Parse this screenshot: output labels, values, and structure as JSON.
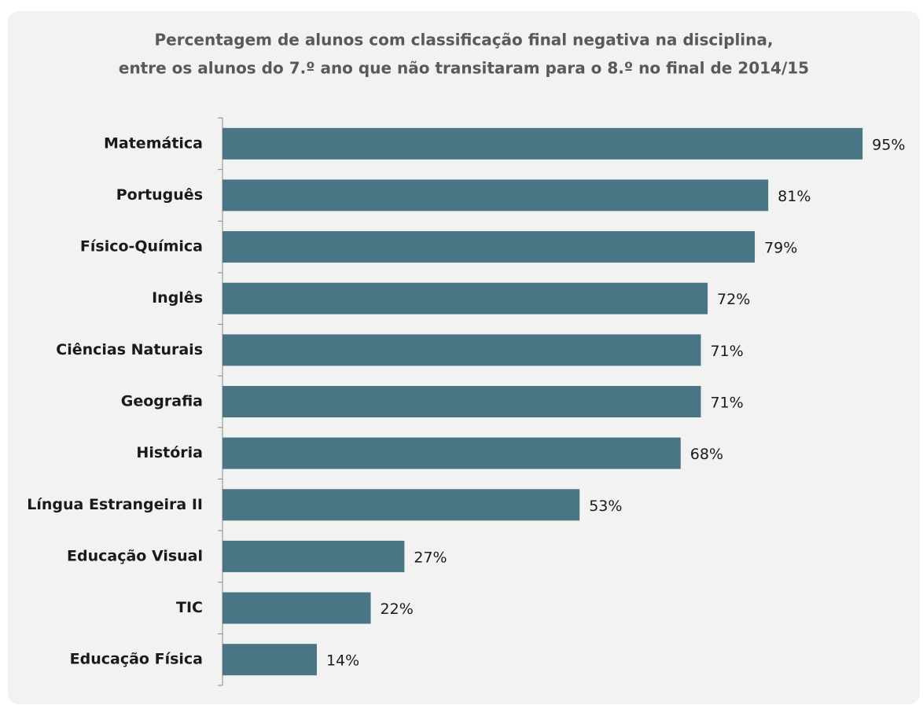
{
  "chart_data": {
    "type": "bar",
    "orientation": "horizontal",
    "title": [
      "Percentagem de alunos com classificação final negativa na disciplina,",
      "entre os alunos do 7.º ano que não transitaram para o 8.º no final de 2014/15"
    ],
    "categories": [
      "Matemática",
      "Português",
      "Físico-Química",
      "Inglês",
      "Ciências Naturais",
      "Geografia",
      "História",
      "Língua Estrangeira II",
      "Educação Visual",
      "TIC",
      "Educação Física"
    ],
    "values": [
      95,
      81,
      79,
      72,
      71,
      71,
      68,
      53,
      27,
      22,
      14
    ],
    "value_labels": [
      "95%",
      "81%",
      "79%",
      "72%",
      "71%",
      "71%",
      "68%",
      "53%",
      "27%",
      "22%",
      "14%"
    ],
    "color": "#4a7584",
    "xlim": [
      0,
      100
    ]
  }
}
